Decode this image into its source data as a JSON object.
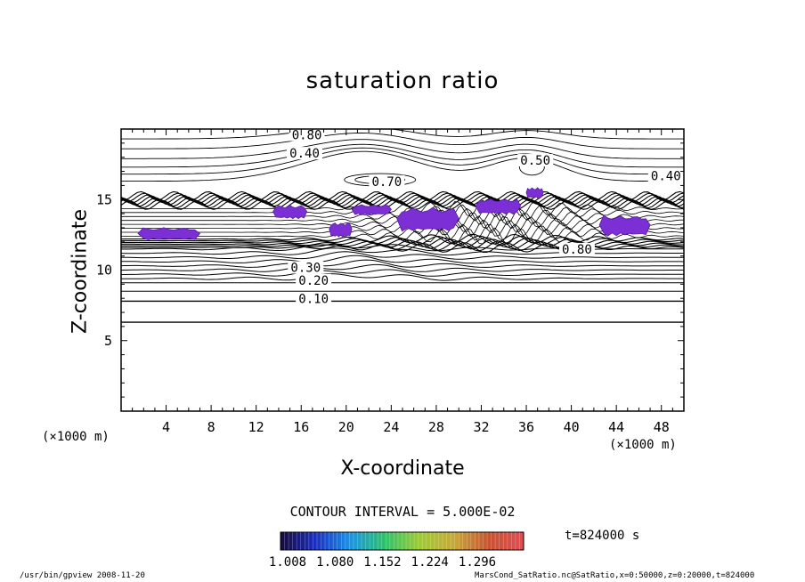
{
  "chart_data": {
    "type": "contour",
    "title": "saturation ratio",
    "xlabel": "X-coordinate",
    "ylabel": "Z-coordinate",
    "x_unit_label": "(×1000 m)",
    "xlim": [
      0,
      50
    ],
    "ylim": [
      0,
      20
    ],
    "x_ticks": [
      4,
      8,
      12,
      16,
      20,
      24,
      28,
      32,
      36,
      40,
      44,
      48
    ],
    "y_ticks": [
      5,
      10,
      15
    ],
    "contour_interval_text": "CONTOUR INTERVAL = 5.000E-02",
    "contour_labels": [
      {
        "text": "0.80",
        "x": 16.5,
        "z": 19.4
      },
      {
        "text": "0.40",
        "x": 16.3,
        "z": 18.1
      },
      {
        "text": "0.70",
        "x": 23.6,
        "z": 16.1
      },
      {
        "text": "0.50",
        "x": 36.8,
        "z": 17.6
      },
      {
        "text": "0.40",
        "x": 48.4,
        "z": 16.5
      },
      {
        "text": "0.80",
        "x": 40.5,
        "z": 11.3
      },
      {
        "text": "0.30",
        "x": 16.4,
        "z": 10.0
      },
      {
        "text": "0.20",
        "x": 17.1,
        "z": 9.1
      },
      {
        "text": "0.10",
        "x": 17.1,
        "z": 7.8
      }
    ],
    "supersaturated_regions": [
      {
        "x_range": [
          1.5,
          7.0
        ],
        "z_range": [
          12.0,
          13.2
        ]
      },
      {
        "x_range": [
          13.5,
          16.5
        ],
        "z_range": [
          13.5,
          14.8
        ]
      },
      {
        "x_range": [
          18.5,
          20.5
        ],
        "z_range": [
          12.2,
          13.6
        ]
      },
      {
        "x_range": [
          20.5,
          24.0
        ],
        "z_range": [
          13.8,
          14.8
        ]
      },
      {
        "x_range": [
          24.5,
          30.0
        ],
        "z_range": [
          12.5,
          14.8
        ]
      },
      {
        "x_range": [
          31.5,
          35.5
        ],
        "z_range": [
          13.8,
          15.3
        ]
      },
      {
        "x_range": [
          36.0,
          37.5
        ],
        "z_range": [
          15.0,
          16.0
        ]
      },
      {
        "x_range": [
          42.5,
          47.0
        ],
        "z_range": [
          12.2,
          14.2
        ]
      }
    ],
    "colorbar": {
      "ticks": [
        "1.008",
        "1.080",
        "1.152",
        "1.224",
        "1.296"
      ],
      "colors": [
        "#160a3a",
        "#1c2ec2",
        "#1a93e6",
        "#2cc36b",
        "#9ecb34",
        "#c7a83a",
        "#c85330",
        "#e04d55"
      ]
    },
    "time_label": "t=824000 s"
  },
  "footer": {
    "left": "/usr/bin/gpview   2008-11-20",
    "right": "MarsCond_SatRatio.nc@SatRatio,x=0:50000,z=0:20000,t=824000"
  }
}
